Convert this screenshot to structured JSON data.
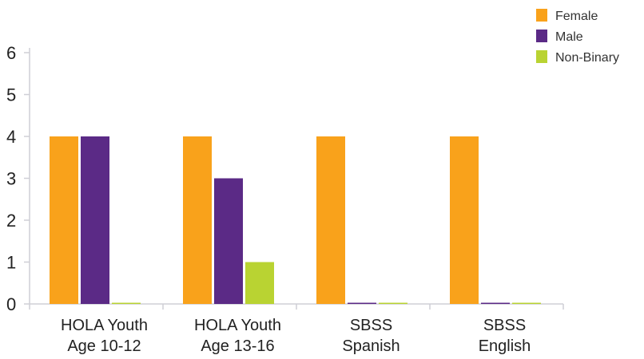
{
  "chart_data": {
    "type": "bar",
    "categories": [
      [
        "HOLA Youth",
        "Age 10-12"
      ],
      [
        "HOLA Youth",
        "Age 13-16"
      ],
      [
        "SBSS",
        "Spanish"
      ],
      [
        "SBSS",
        "English"
      ]
    ],
    "series": [
      {
        "name": "Female",
        "color": "#F9A21B",
        "values": [
          4,
          4,
          4,
          4
        ]
      },
      {
        "name": "Male",
        "color": "#5B2A86",
        "values": [
          4,
          3,
          0,
          0
        ]
      },
      {
        "name": "Non-Binary",
        "color": "#B9D332",
        "values": [
          0,
          1,
          0,
          0
        ]
      }
    ],
    "yticks": [
      0,
      1,
      2,
      3,
      4,
      5,
      6
    ],
    "ylim": [
      0,
      6
    ],
    "grid": false,
    "legend": "top-right",
    "axis_color": "#CFCFD6"
  }
}
